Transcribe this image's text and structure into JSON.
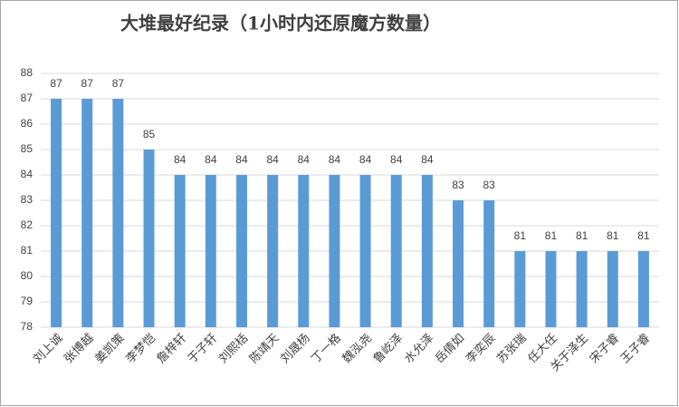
{
  "chart_data": {
    "type": "bar",
    "title": "大堆最好纪录（1小时内还原魔方数量）",
    "categories": [
      "刘上诚",
      "张博越",
      "姜凯策",
      "李梦恺",
      "詹梓轩",
      "于子轩",
      "刘熙栝",
      "陈靖天",
      "刘晟杨",
      "丁一格",
      "魏泓尧",
      "鲁屹泽",
      "水允泽",
      "岳倩如",
      "李奕辰",
      "苏张瑞",
      "任大任",
      "关于泽生",
      "宋子睿",
      "王子睿"
    ],
    "values": [
      87,
      87,
      87,
      85,
      84,
      84,
      84,
      84,
      84,
      84,
      84,
      84,
      84,
      83,
      83,
      81,
      81,
      81,
      81,
      81
    ],
    "color": "#5b9bd5",
    "ylim": [
      78,
      88
    ],
    "yticks": [
      78,
      79,
      80,
      81,
      82,
      83,
      84,
      85,
      86,
      87,
      88
    ],
    "grid": true
  }
}
